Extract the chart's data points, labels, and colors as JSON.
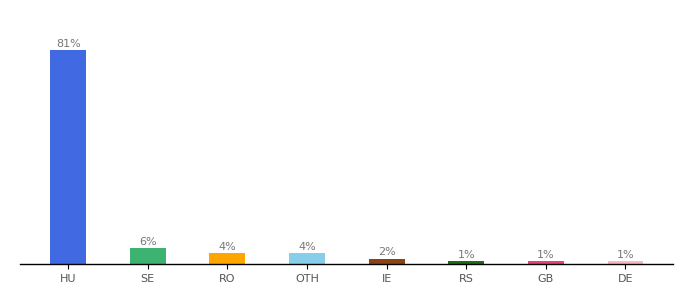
{
  "categories": [
    "HU",
    "SE",
    "RO",
    "OTH",
    "IE",
    "RS",
    "GB",
    "DE"
  ],
  "values": [
    81,
    6,
    4,
    4,
    2,
    1,
    1,
    1
  ],
  "labels": [
    "81%",
    "6%",
    "4%",
    "4%",
    "2%",
    "1%",
    "1%",
    "1%"
  ],
  "bar_colors": [
    "#4169e1",
    "#3cb371",
    "#ffa500",
    "#87ceeb",
    "#8b4513",
    "#1a6e1a",
    "#e8427c",
    "#ffb6c1"
  ],
  "background_color": "#ffffff",
  "label_fontsize": 8,
  "tick_fontsize": 8,
  "bar_width": 0.45,
  "ylim": [
    0,
    92
  ]
}
